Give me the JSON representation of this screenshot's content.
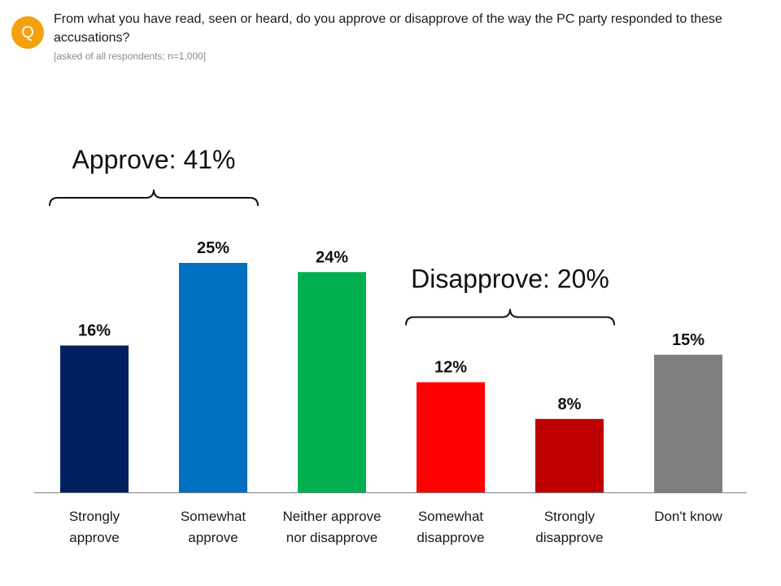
{
  "question": {
    "icon": "Q",
    "text": "From what you have read, seen or heard, do you approve or disapprove of the way the PC party responded to these accusations?",
    "note": "[asked of all respondents; n=1,000]"
  },
  "colors": {
    "badge": "#f5a00f",
    "bars": [
      "#002060",
      "#0070c0",
      "#00b050",
      "#ff0000",
      "#c00000",
      "#7f7f7f"
    ]
  },
  "chart_data": {
    "type": "bar",
    "categories": [
      [
        "Strongly",
        "approve"
      ],
      [
        "Somewhat",
        "approve"
      ],
      [
        "Neither approve",
        "nor disapprove"
      ],
      [
        "Somewhat",
        "disapprove"
      ],
      [
        "Strongly",
        "disapprove"
      ],
      [
        "Don't know"
      ]
    ],
    "values": [
      16,
      25,
      24,
      12,
      8,
      15
    ],
    "value_labels": [
      "16%",
      "25%",
      "24%",
      "12%",
      "8%",
      "15%"
    ],
    "ylim": [
      0,
      25
    ],
    "groups": [
      {
        "label": "Approve: 41%",
        "from": 0,
        "to": 1
      },
      {
        "label": "Disapprove: 20%",
        "from": 3,
        "to": 4
      }
    ],
    "grid": false,
    "legend": "none"
  }
}
